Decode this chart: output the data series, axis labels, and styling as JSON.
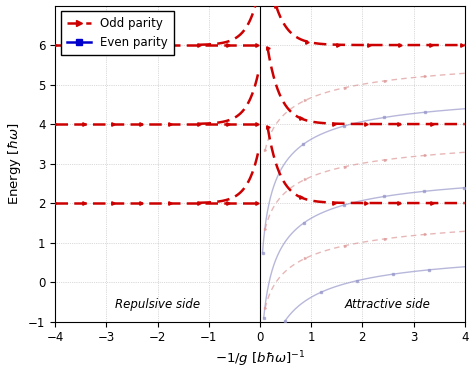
{
  "xlim": [
    -4,
    4
  ],
  "ylim": [
    -1,
    7
  ],
  "xticks": [
    -4,
    -3,
    -2,
    -1,
    0,
    1,
    2,
    3,
    4
  ],
  "yticks": [
    -1,
    0,
    1,
    2,
    3,
    4,
    5,
    6
  ],
  "legend_labels": [
    "Odd parity",
    "Even parity"
  ],
  "repulsive_label": "Repulsive side",
  "attractive_label": "Attractive side",
  "even_color": "#0000cc",
  "odd_color": "#cc0000",
  "faint_even_color": "#9999cc",
  "faint_odd_color": "#dd9999",
  "grid_color": "#888888",
  "background_color": "#ffffff",
  "marker_size": 2.5,
  "lw_main": 1.8,
  "lw_faint": 1.0
}
